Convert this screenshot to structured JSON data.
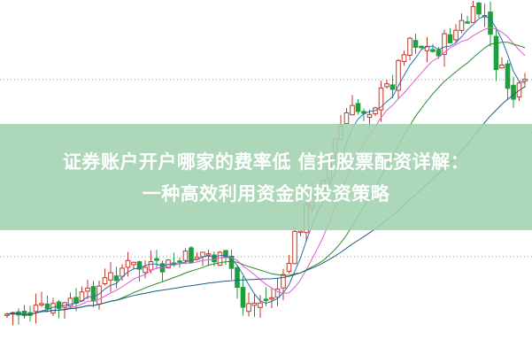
{
  "headline": {
    "line1": "证券账户开户哪家的费率低 信托股票配资详解：",
    "line2": "一种高效利用资金的投资策略"
  },
  "colors": {
    "up_candle": "#c0392b",
    "down_candle": "#1e9e3c",
    "overlay_band": "#a8d6b6",
    "headline_text": "#ffffff"
  }
}
